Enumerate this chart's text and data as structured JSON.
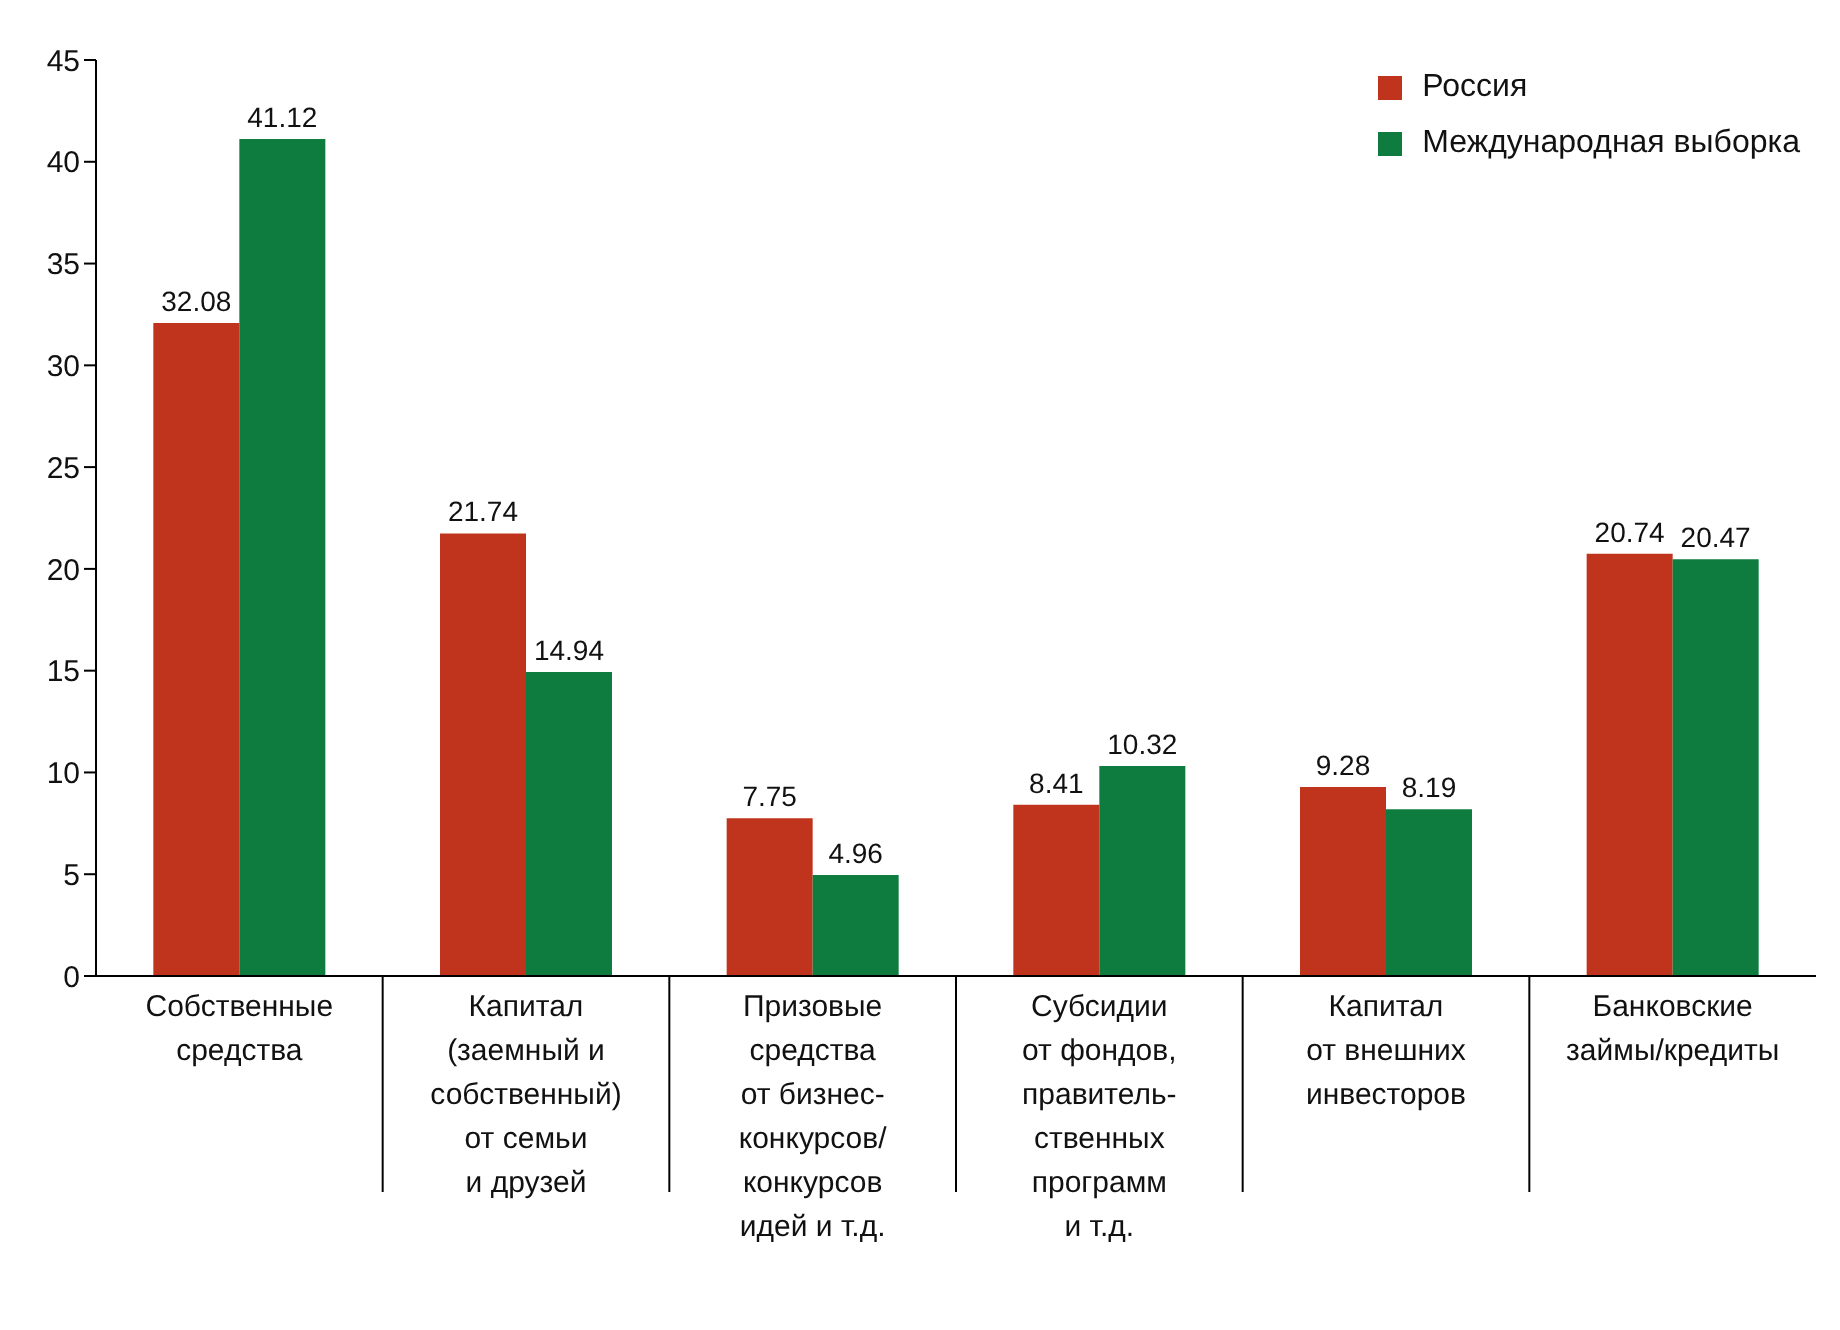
{
  "chart_data": {
    "type": "bar",
    "categories": [
      "Собственные\nсредства",
      "Капитал\n(заемный и\nсобственный)\nот семьи\nи друзей",
      "Призовые\nсредства\nот бизнес-\nконкурсов/\nконкурсов\nидей и т.д.",
      "Субсидии\nот фондов,\nправитель-\nственных\nпрограмм\nи т.д.",
      "Капитал\nот внешних\nинвесторов",
      "Банковские\nзаймы/кредиты"
    ],
    "series": [
      {
        "name": "Россия",
        "color": "#c0341d",
        "values": [
          32.08,
          21.74,
          7.75,
          8.41,
          9.28,
          20.74
        ]
      },
      {
        "name": "Международная выборка",
        "color": "#0f7c3f",
        "values": [
          41.12,
          14.94,
          4.96,
          10.32,
          8.19,
          20.47
        ]
      }
    ],
    "ylim": [
      0,
      45
    ],
    "yticks": [
      0,
      5,
      10,
      15,
      20,
      25,
      30,
      35,
      40,
      45
    ],
    "grid": false,
    "legend": "top right",
    "data_labels": true
  }
}
